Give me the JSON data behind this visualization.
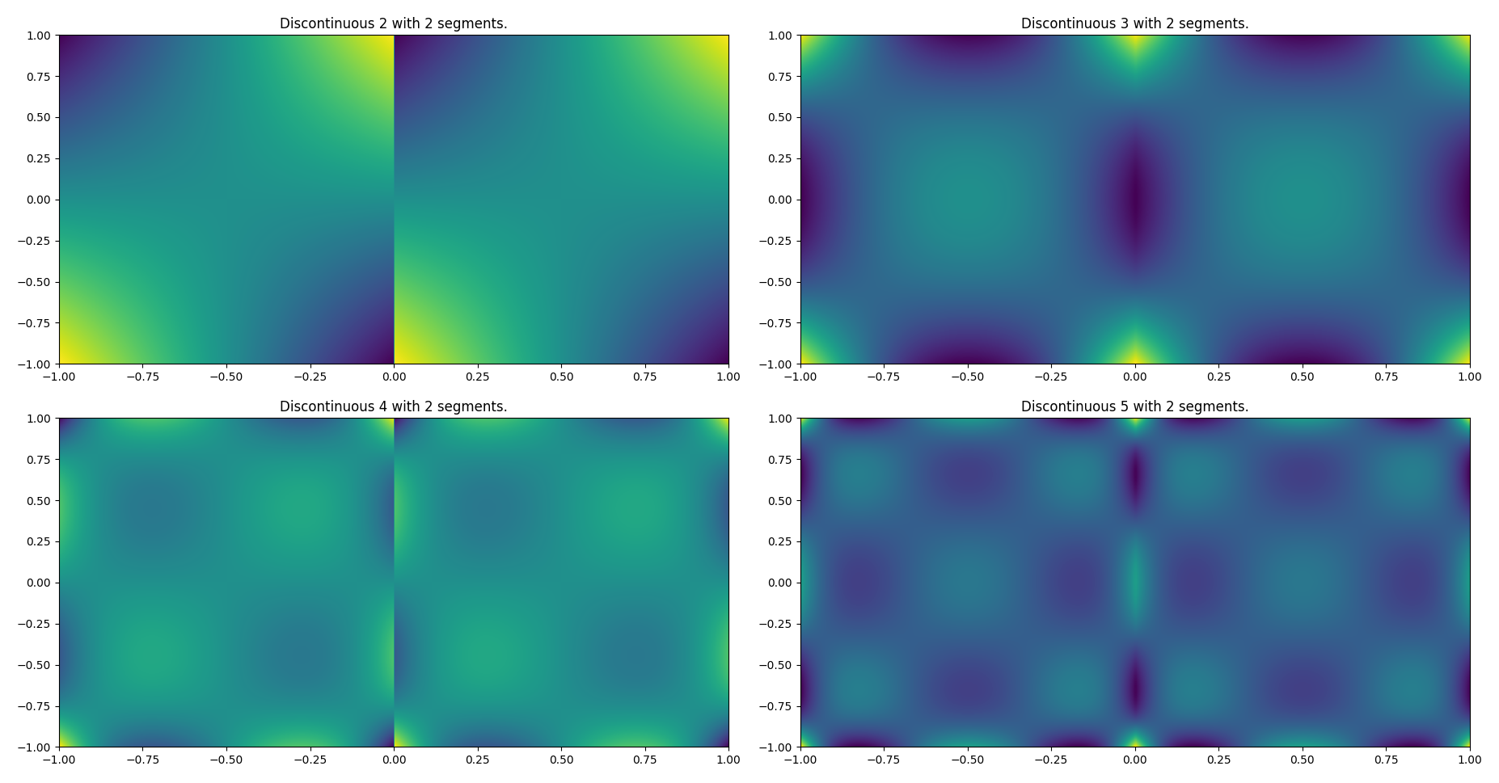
{
  "titles": [
    "Discontinuous 2 with 2 segments.",
    "Discontinuous 3 with 2 segments.",
    "Discontinuous 4 with 2 segments.",
    "Discontinuous 5 with 2 segments."
  ],
  "degrees": [
    2,
    3,
    4,
    5
  ],
  "n_segments": 2,
  "xlim": [
    -1,
    1
  ],
  "ylim": [
    -1,
    1
  ],
  "xticks": [
    -1.0,
    -0.75,
    -0.5,
    -0.25,
    0.0,
    0.25,
    0.5,
    0.75,
    1.0
  ],
  "yticks": [
    -1.0,
    -0.75,
    -0.5,
    -0.25,
    0.0,
    0.25,
    0.5,
    0.75,
    1.0
  ],
  "colormap": "viridis",
  "grid_resolution": 500,
  "figsize": [
    18.54,
    9.69
  ],
  "dpi": 100,
  "background_color": "#ffffff"
}
